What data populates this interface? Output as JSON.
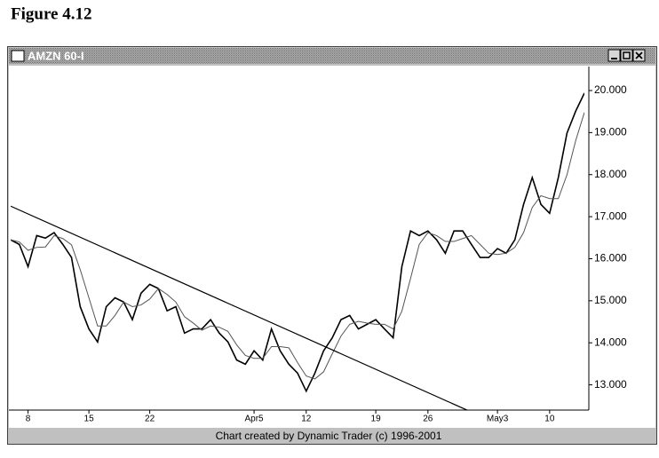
{
  "figure_label": "Figure 4.12",
  "window_title": "AMZN 60-I",
  "chart_data": {
    "type": "line",
    "footer": "Chart created by Dynamic Trader (c) 1996-2001",
    "xlim": [
      0,
      66
    ],
    "xticks": [
      {
        "value": 2,
        "label": "8"
      },
      {
        "value": 9,
        "label": "15"
      },
      {
        "value": 16,
        "label": "22"
      },
      {
        "value": 28,
        "label": "Apr5"
      },
      {
        "value": 34,
        "label": "12"
      },
      {
        "value": 42,
        "label": "19"
      },
      {
        "value": 48,
        "label": "26"
      },
      {
        "value": 56,
        "label": "May3"
      },
      {
        "value": 62,
        "label": "10"
      }
    ],
    "ylim": [
      12.4,
      20.57
    ],
    "yticks": [
      {
        "value": 13,
        "label": "13.000"
      },
      {
        "value": 14,
        "label": "14.000"
      },
      {
        "value": 15,
        "label": "15.000"
      },
      {
        "value": 16,
        "label": "16.000"
      },
      {
        "value": 17,
        "label": "17.000"
      },
      {
        "value": 18,
        "label": "18.000"
      },
      {
        "value": 19,
        "label": "19.000"
      },
      {
        "value": 20,
        "label": "20.000"
      }
    ],
    "series": [
      {
        "color": "#000000",
        "values": [
          16.45,
          16.34,
          15.81,
          16.55,
          16.49,
          16.62,
          16.34,
          16.03,
          14.86,
          14.33,
          14.02,
          14.86,
          15.07,
          14.97,
          14.55,
          15.18,
          15.39,
          15.29,
          14.76,
          14.86,
          14.23,
          14.33,
          14.33,
          14.55,
          14.23,
          14.02,
          13.59,
          13.49,
          13.81,
          13.59,
          14.33,
          13.81,
          13.49,
          13.28,
          12.85,
          13.28,
          13.81,
          14.12,
          14.55,
          14.65,
          14.33,
          14.44,
          14.55,
          14.33,
          14.12,
          15.81,
          16.66,
          16.55,
          16.66,
          16.45,
          16.13,
          16.66,
          16.66,
          16.34,
          16.03,
          16.03,
          16.24,
          16.13,
          16.45,
          17.29,
          17.93,
          17.29,
          17.08,
          17.93,
          18.99,
          19.51,
          19.94
        ]
      },
      {
        "color": "#555555",
        "values": [
          16.45,
          16.4,
          16.2,
          16.27,
          16.28,
          16.55,
          16.48,
          16.33,
          15.74,
          15.07,
          14.4,
          14.4,
          14.65,
          14.97,
          14.86,
          14.9,
          15.04,
          15.29,
          15.15,
          14.97,
          14.62,
          14.47,
          14.3,
          14.4,
          14.37,
          14.27,
          13.95,
          13.7,
          13.63,
          13.63,
          13.91,
          13.91,
          13.88,
          13.53,
          13.21,
          13.14,
          13.31,
          13.74,
          14.16,
          14.44,
          14.51,
          14.47,
          14.44,
          14.44,
          14.33,
          14.75,
          15.53,
          16.34,
          16.62,
          16.55,
          16.41,
          16.41,
          16.48,
          16.55,
          16.34,
          16.13,
          16.1,
          16.13,
          16.27,
          16.62,
          17.22,
          17.5,
          17.43,
          17.43,
          18.0,
          18.81,
          19.48
        ]
      }
    ],
    "trendline": {
      "x": [
        0,
        52.6
      ],
      "y": [
        17.25,
        12.39
      ],
      "color": "#000000"
    }
  }
}
